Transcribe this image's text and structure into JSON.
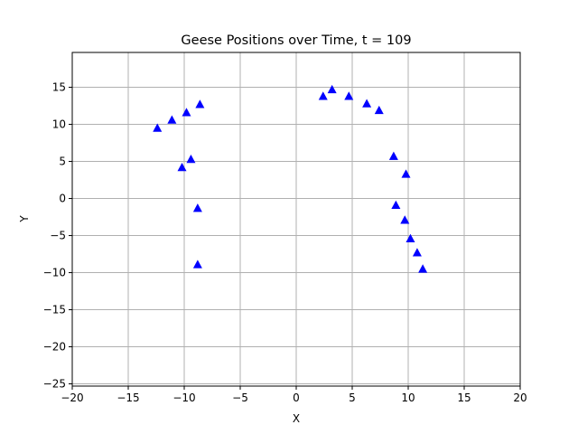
{
  "chart_data": {
    "type": "scatter",
    "title": "Geese Positions over Time, t = 109",
    "xlabel": "X",
    "ylabel": "Y",
    "xlim": [
      -20,
      20
    ],
    "ylim": [
      -25.3,
      19.7
    ],
    "xticks": [
      -20,
      -15,
      -10,
      -5,
      0,
      5,
      10,
      15,
      20
    ],
    "yticks": [
      -25,
      -20,
      -15,
      -10,
      -5,
      0,
      5,
      10,
      15
    ],
    "xtick_labels": [
      "−20",
      "−15",
      "−10",
      "−5",
      "0",
      "5",
      "10",
      "15",
      "20"
    ],
    "ytick_labels": [
      "−25",
      "−20",
      "−15",
      "−10",
      "−5",
      "0",
      "5",
      "10",
      "15"
    ],
    "grid": true,
    "marker": "triangle-up",
    "color": "#0000ff",
    "series": [
      {
        "points": [
          {
            "x": -12.4,
            "y": 9.5
          },
          {
            "x": -11.1,
            "y": 10.6
          },
          {
            "x": -9.8,
            "y": 11.6
          },
          {
            "x": -8.6,
            "y": 12.7
          },
          {
            "x": -10.2,
            "y": 4.2
          },
          {
            "x": -9.4,
            "y": 5.3
          },
          {
            "x": -8.8,
            "y": -1.3
          },
          {
            "x": -8.8,
            "y": -8.9
          },
          {
            "x": 2.4,
            "y": 13.8
          },
          {
            "x": 3.2,
            "y": 14.7
          },
          {
            "x": 4.7,
            "y": 13.8
          },
          {
            "x": 6.3,
            "y": 12.8
          },
          {
            "x": 7.4,
            "y": 11.9
          },
          {
            "x": 8.7,
            "y": 5.7
          },
          {
            "x": 9.8,
            "y": 3.3
          },
          {
            "x": 8.9,
            "y": -0.9
          },
          {
            "x": 9.7,
            "y": -2.9
          },
          {
            "x": 10.2,
            "y": -5.4
          },
          {
            "x": 10.8,
            "y": -7.3
          },
          {
            "x": 11.3,
            "y": -9.5
          }
        ]
      }
    ]
  }
}
